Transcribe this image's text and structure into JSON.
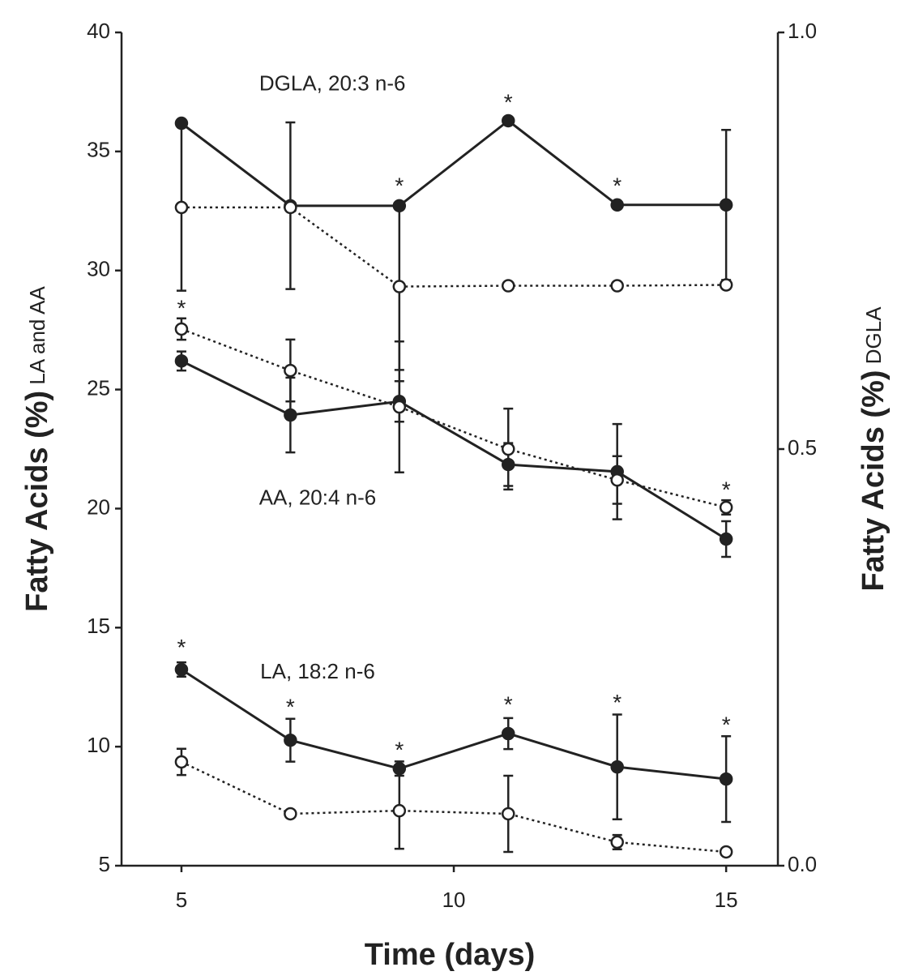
{
  "chart_data": {
    "type": "line",
    "x_label": "Time (days)",
    "y_label_main": "Fatty Acids (%)",
    "y_label_sub": " LA and AA",
    "y2_label_main": "Fatty Acids (%)",
    "y2_label_sub": " DGLA",
    "xlim": [
      3.9,
      15.95
    ],
    "xticks": [
      5,
      10,
      15
    ],
    "ylim": [
      5,
      40
    ],
    "yticks": [
      5,
      10,
      15,
      20,
      25,
      30,
      35,
      40
    ],
    "y2lim": [
      0,
      1
    ],
    "y2ticks": [
      {
        "value": 0,
        "label": "0.0"
      },
      {
        "value": 0.5,
        "label": "0.5"
      },
      {
        "value": 1,
        "label": "1.0"
      }
    ],
    "x": [
      5,
      7,
      9,
      11,
      13,
      15
    ],
    "series": [
      {
        "axis": "y2",
        "marker": "filled",
        "style": "solid",
        "color": "#222",
        "values": [
          0.891,
          0.792,
          0.792,
          0.894,
          0.793,
          0.793
        ],
        "errors": [
          null,
          0.1,
          null,
          null,
          null,
          0.09
        ]
      },
      {
        "axis": "y2",
        "marker": "open",
        "style": "dotted",
        "color": "#222",
        "values": [
          0.79,
          0.79,
          0.695,
          0.696,
          0.696,
          0.697
        ],
        "errors": [
          0.1,
          null,
          0.1,
          null,
          null,
          null
        ]
      },
      {
        "axis": "y",
        "marker": "filled",
        "style": "solid",
        "color": "#222",
        "values": [
          26.2,
          23.93,
          24.5,
          21.85,
          21.55,
          18.72
        ],
        "errors": [
          0.4,
          1.57,
          0.85,
          0.9,
          2.0,
          0.75
        ]
      },
      {
        "axis": "y",
        "marker": "open",
        "style": "dotted",
        "color": "#222",
        "values": [
          27.54,
          25.8,
          24.27,
          22.5,
          21.2,
          20.05
        ],
        "errors": [
          0.45,
          1.3,
          2.75,
          1.7,
          1.0,
          0.3
        ]
      },
      {
        "axis": "y",
        "marker": "filled",
        "style": "solid",
        "color": "#222",
        "values": [
          13.24,
          10.27,
          9.08,
          10.55,
          9.15,
          8.64
        ],
        "errors": [
          0.3,
          0.9,
          0.3,
          0.65,
          2.2,
          1.8
        ]
      },
      {
        "axis": "y",
        "marker": "open",
        "style": "dotted",
        "color": "#222",
        "values": [
          9.36,
          7.18,
          7.31,
          7.18,
          5.99,
          5.58
        ],
        "errors": [
          0.55,
          0.15,
          1.6,
          1.6,
          0.3,
          0.1
        ]
      }
    ],
    "annotations": [
      {
        "text": "DGLA, 20:3 n-6",
        "x": 7.77,
        "y": 37.8
      },
      {
        "text": "AA, 20:4 n-6",
        "x": 7.5,
        "y": 20.4
      },
      {
        "text": "LA, 18:2 n-6",
        "x": 7.5,
        "y": 13.1
      },
      {
        "text": "*",
        "x": 9,
        "y": 0.82,
        "axis": "y2"
      },
      {
        "text": "*",
        "x": 11,
        "y": 0.92,
        "axis": "y2"
      },
      {
        "text": "*",
        "x": 13,
        "y": 0.82,
        "axis": "y2"
      },
      {
        "text": "*",
        "x": 5,
        "y": 28.56
      },
      {
        "text": "*",
        "x": 15,
        "y": 20.93
      },
      {
        "text": "*",
        "x": 5,
        "y": 14.3
      },
      {
        "text": "*",
        "x": 7,
        "y": 11.8
      },
      {
        "text": "*",
        "x": 9,
        "y": 10.0
      },
      {
        "text": "*",
        "x": 11,
        "y": 11.9
      },
      {
        "text": "*",
        "x": 13,
        "y": 12.0
      },
      {
        "text": "*",
        "x": 15,
        "y": 11.05
      }
    ]
  }
}
